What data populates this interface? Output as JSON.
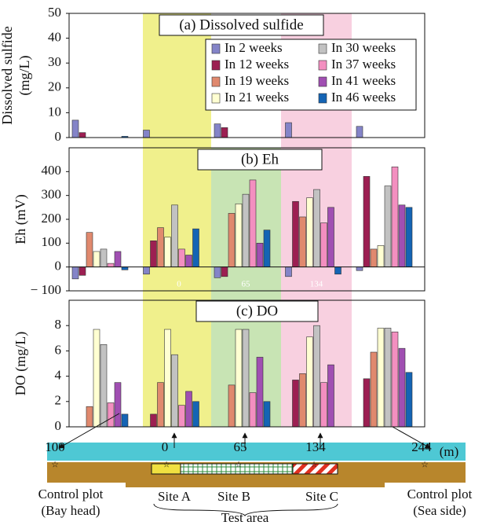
{
  "chart_data": [
    {
      "type": "bar",
      "title": "(a) Dissolved sulfide",
      "ylabel": [
        "Dissolved sulfide",
        "(mg/L)"
      ],
      "categories": [
        null,
        null,
        null,
        null,
        null
      ],
      "ylim": [
        0,
        50
      ],
      "yticks": [
        0,
        10,
        20,
        30,
        40,
        50
      ],
      "series": [
        {
          "name": "In 2 weeks",
          "color": "#8484c8",
          "values": [
            7,
            3,
            5.5,
            6,
            4.5
          ]
        },
        {
          "name": "In 12 weeks",
          "color": "#9c1f52",
          "values": [
            2,
            null,
            4,
            null,
            null
          ]
        },
        {
          "name": "In 19 weeks",
          "color": "#e0896e",
          "values": [
            null,
            null,
            null,
            null,
            null
          ]
        },
        {
          "name": "In 21 weeks",
          "color": "#ffffd2",
          "values": [
            null,
            null,
            null,
            null,
            null
          ]
        },
        {
          "name": "In 30 weeks",
          "color": "#c2c2c2",
          "values": [
            null,
            null,
            null,
            null,
            null
          ]
        },
        {
          "name": "In 37 weeks",
          "color": "#f38fc0",
          "values": [
            null,
            null,
            null,
            null,
            null
          ]
        },
        {
          "name": "In 41 weeks",
          "color": "#a04fb2",
          "values": [
            null,
            null,
            null,
            null,
            null
          ]
        },
        {
          "name": "In 46 weeks",
          "color": "#1464b4",
          "values": [
            0.5,
            null,
            null,
            null,
            null
          ]
        }
      ]
    },
    {
      "type": "bar",
      "title": "(b) Eh",
      "ylabel": [
        "Eh (mV)"
      ],
      "categories": [
        null,
        null,
        null,
        null,
        null
      ],
      "ylim": [
        -100,
        500
      ],
      "yticks": [
        {
          "value": -100,
          "label": "− 100"
        },
        0,
        100,
        200,
        300,
        400
      ],
      "annotations": [
        "0",
        "65",
        "134"
      ],
      "series": [
        {
          "color": "#8484c8",
          "values": [
            -50,
            -30,
            -45,
            -40,
            -15
          ]
        },
        {
          "color": "#9c1f52",
          "values": [
            -35,
            110,
            -40,
            275,
            380
          ]
        },
        {
          "color": "#e0896e",
          "values": [
            145,
            165,
            225,
            210,
            75
          ]
        },
        {
          "color": "#ffffd2",
          "values": [
            65,
            125,
            265,
            290,
            90
          ]
        },
        {
          "color": "#c2c2c2",
          "values": [
            75,
            260,
            305,
            325,
            340
          ]
        },
        {
          "color": "#f38fc0",
          "values": [
            15,
            75,
            365,
            185,
            420
          ]
        },
        {
          "color": "#a04fb2",
          "values": [
            65,
            50,
            100,
            250,
            260
          ]
        },
        {
          "color": "#1464b4",
          "values": [
            -12,
            160,
            155,
            -30,
            250
          ]
        }
      ]
    },
    {
      "type": "bar",
      "title": "(c) DO",
      "ylabel": [
        "DO (mg/L)"
      ],
      "categories": [
        null,
        null,
        null,
        null,
        null
      ],
      "ylim": [
        0,
        10
      ],
      "yticks": [
        0,
        2,
        4,
        6,
        8
      ],
      "series": [
        {
          "color": "#8484c8",
          "values": [
            null,
            null,
            null,
            null,
            null
          ]
        },
        {
          "color": "#9c1f52",
          "values": [
            null,
            1.0,
            null,
            3.7,
            3.8
          ]
        },
        {
          "color": "#e0896e",
          "values": [
            1.6,
            3.5,
            3.3,
            4.2,
            5.9
          ]
        },
        {
          "color": "#ffffd2",
          "values": [
            7.7,
            7.7,
            7.7,
            7.1,
            7.8
          ]
        },
        {
          "color": "#c2c2c2",
          "values": [
            6.5,
            5.7,
            7.7,
            8.0,
            7.8
          ]
        },
        {
          "color": "#f38fc0",
          "values": [
            1.9,
            1.7,
            2.7,
            3.5,
            7.5
          ]
        },
        {
          "color": "#a04fb2",
          "values": [
            3.5,
            2.8,
            5.5,
            4.9,
            6.2
          ]
        },
        {
          "color": "#1464b4",
          "values": [
            1.0,
            2.0,
            2.0,
            null,
            4.3
          ]
        }
      ]
    }
  ],
  "diagram": {
    "distances": [
      "100",
      "0",
      "65",
      "134",
      "244"
    ],
    "unit": "(m)",
    "left_label": [
      "Control plot",
      "(Bay head)"
    ],
    "sites": [
      "Site A",
      "Site B",
      "Site C"
    ],
    "test_area": "Test area",
    "right_label": [
      "Control plot",
      "(Sea side)"
    ]
  }
}
